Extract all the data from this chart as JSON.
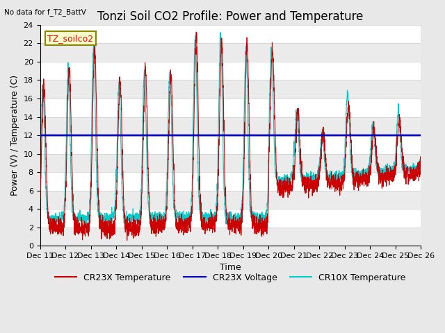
{
  "title": "Tonzi Soil CO2 Profile: Power and Temperature",
  "subtitle": "No data for f_T2_BattV",
  "ylabel": "Power (V) / Temperature (C)",
  "xlabel": "Time",
  "legend_label": "TZ_soilco2",
  "ylim": [
    0,
    24
  ],
  "yticks": [
    0,
    2,
    4,
    6,
    8,
    10,
    12,
    14,
    16,
    18,
    20,
    22,
    24
  ],
  "xtick_labels": [
    "Dec 11",
    "Dec 12",
    "Dec 13",
    "Dec 14",
    "Dec 15",
    "Dec 16",
    "Dec 17",
    "Dec 18",
    "Dec 19",
    "Dec 20",
    "Dec 21",
    "Dec 22",
    "Dec 23",
    "Dec 24",
    "Dec 25",
    "Dec 26"
  ],
  "cr23x_temp_color": "#cc0000",
  "cr23x_volt_color": "#0000bb",
  "cr10x_temp_color": "#00cccc",
  "voltage_value": 12.0,
  "bg_color": "#e8e8e8",
  "plot_bg_color": "#ffffff",
  "grid_color": "#cccccc",
  "title_fontsize": 12,
  "label_fontsize": 9,
  "tick_fontsize": 8,
  "legend_fontsize": 9
}
